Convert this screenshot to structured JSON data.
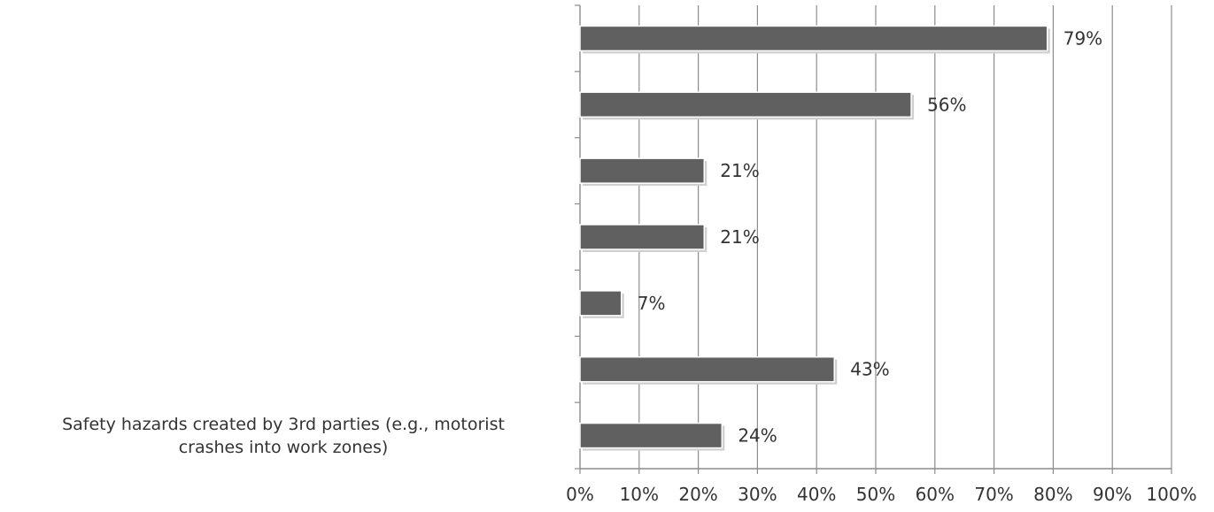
{
  "chart_data": {
    "type": "bar",
    "orientation": "horizontal",
    "title": "",
    "xlabel": "",
    "ylabel": "",
    "xlim": [
      0,
      100
    ],
    "x_ticks": [
      "0%",
      "10%",
      "20%",
      "30%",
      "40%",
      "50%",
      "60%",
      "70%",
      "80%",
      "90%",
      "100%"
    ],
    "value_suffix": "%",
    "grid": true,
    "legend": "none",
    "bar_color": "#606060",
    "categories": [
      "",
      "",
      "",
      "",
      "",
      "",
      "Safety hazards created by 3rd parties (e.g., motorist crashes into work zones)"
    ],
    "category_label_lines": [
      [],
      [],
      [],
      [],
      [],
      [],
      [
        "Safety hazards created by 3rd parties (e.g., motorist",
        "crashes into work zones)"
      ]
    ],
    "values": [
      79,
      56,
      21,
      21,
      7,
      43,
      24
    ],
    "data_labels": [
      "79%",
      "56%",
      "21%",
      "21%",
      "7%",
      "43%",
      "24%"
    ]
  }
}
